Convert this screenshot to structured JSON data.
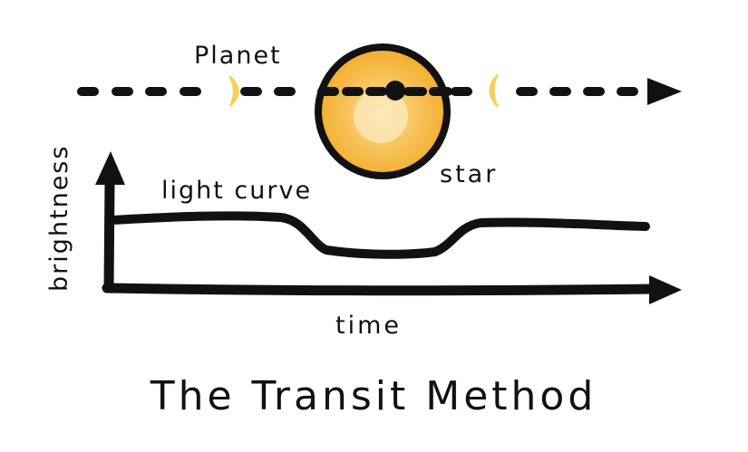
{
  "diagram": {
    "title": "The Transit Method",
    "labels": {
      "planet": "Planet",
      "star": "star",
      "light_curve": "light curve",
      "x_axis": "time",
      "y_axis": "brightness"
    },
    "colors": {
      "ink": "#111111",
      "star_outer": "#F4AE2E",
      "star_mid": "#F8C866",
      "star_core": "#FBE6B5",
      "planet_crescent": "#F5D05A",
      "background": "#FFFFFF"
    },
    "elements": {
      "orbit_path": "dashed line with arrowhead pointing right",
      "planet_positions": [
        "crescent before transit",
        "dark disk in front of star",
        "crescent after transit"
      ],
      "light_curve_shape": "flat, dips during transit, returns to baseline"
    }
  }
}
